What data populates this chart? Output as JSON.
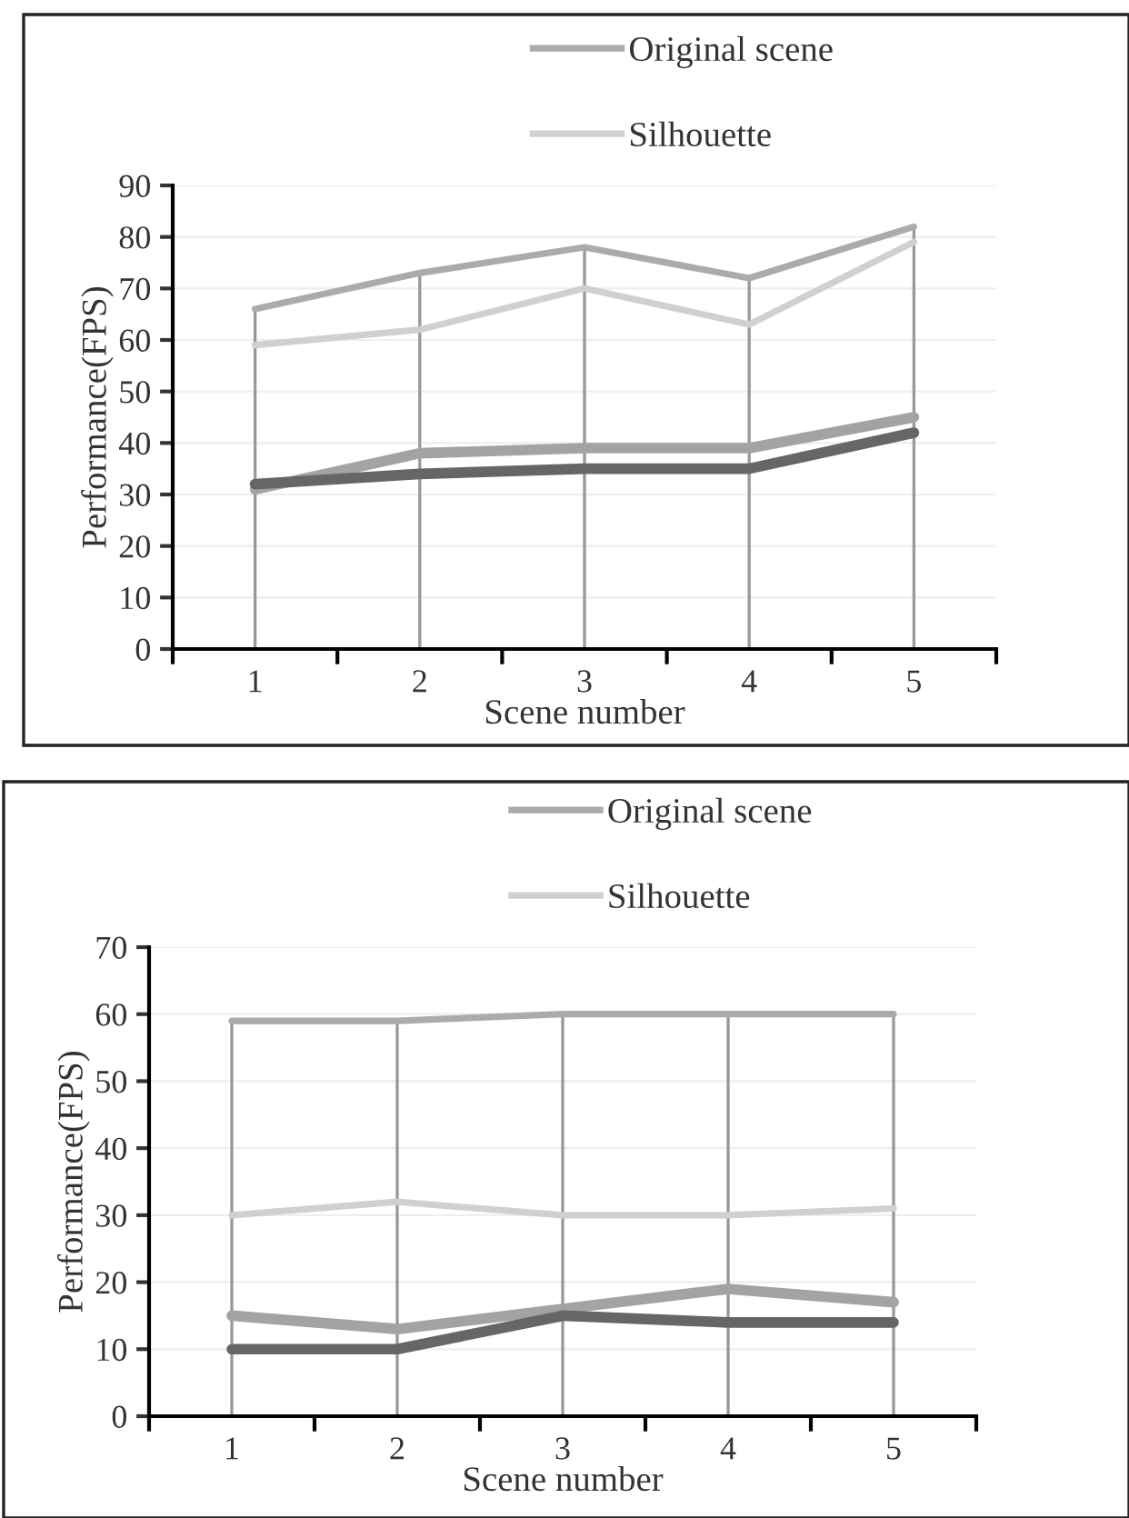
{
  "chart_data": [
    {
      "type": "line",
      "categories": [
        "1",
        "2",
        "3",
        "4",
        "5"
      ],
      "xlabel": "Scene number",
      "ylabel": "Performance(FPS)",
      "ylim": [
        0,
        90
      ],
      "yticks": [
        0,
        10,
        20,
        30,
        40,
        50,
        60,
        70,
        80,
        90
      ],
      "grid": true,
      "legend": "top",
      "line_style": "solid",
      "marker": "none",
      "series": [
        {
          "name": "Original scene",
          "color": "#ababab",
          "values": [
            66,
            73,
            78,
            72,
            82
          ]
        },
        {
          "name": "Silhouette",
          "color": "#d0d0d0",
          "values": [
            59,
            62,
            70,
            63,
            79
          ]
        },
        {
          "color": "#a3a3a3",
          "values": [
            31,
            38,
            39,
            39,
            45
          ]
        },
        {
          "color": "#666666",
          "values": [
            32,
            34,
            35,
            35,
            42
          ]
        }
      ]
    },
    {
      "type": "line",
      "categories": [
        "1",
        "2",
        "3",
        "4",
        "5"
      ],
      "xlabel": "Scene number",
      "ylabel": "Performance(FPS)",
      "ylim": [
        0,
        70
      ],
      "yticks": [
        0,
        10,
        20,
        30,
        40,
        50,
        60,
        70
      ],
      "grid": true,
      "legend": "top",
      "line_style": "solid",
      "marker": "none",
      "series": [
        {
          "name": "Original scene",
          "color": "#ababab",
          "values": [
            59,
            59,
            60,
            60,
            60
          ]
        },
        {
          "name": "Silhouette",
          "color": "#d0d0d0",
          "values": [
            30,
            32,
            30,
            30,
            31
          ]
        },
        {
          "color": "#a3a3a3",
          "values": [
            15,
            13,
            16,
            19,
            17
          ]
        },
        {
          "color": "#666666",
          "values": [
            10,
            10,
            15,
            14,
            14
          ]
        }
      ]
    }
  ]
}
